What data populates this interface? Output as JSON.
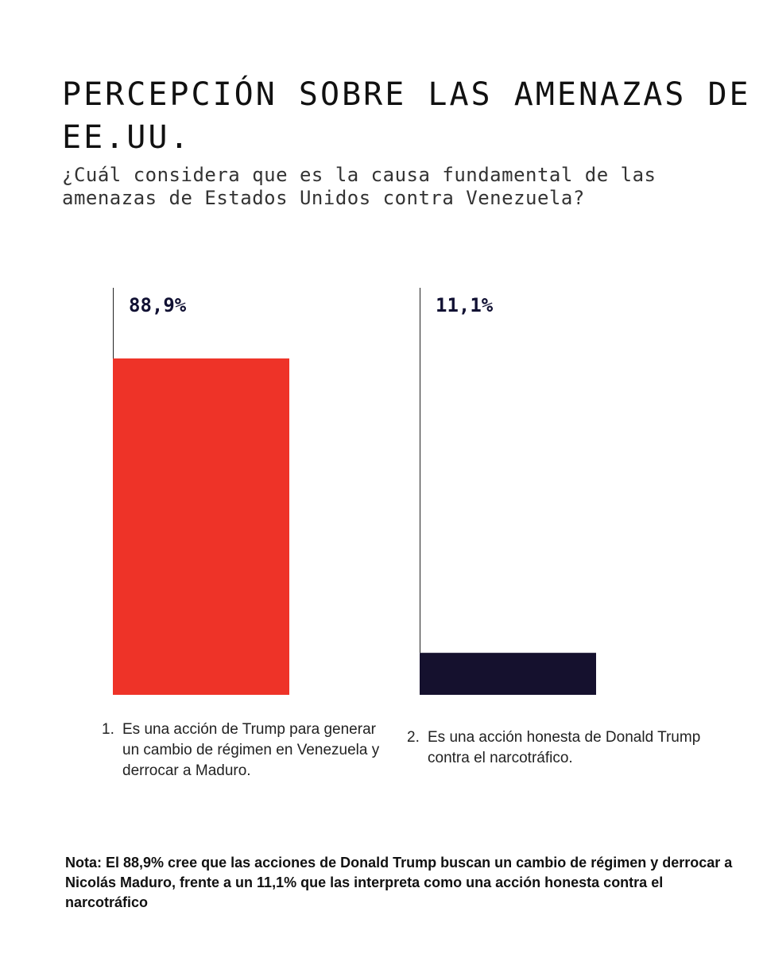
{
  "title": "PERCEPCIÓN SOBRE LAS AMENAZAS DE EE.UU.",
  "subtitle": "¿Cuál considera que es la causa fundamental de las amenazas de Estados Unidos contra Venezuela?",
  "chart_data": {
    "type": "bar",
    "categories": [
      "Es una acción de Trump para generar un cambio de régimen en Venezuela y derrocar a Maduro.",
      "Es una acción honesta de Donald Trump contra el narcotráfico."
    ],
    "category_numbers": [
      "1.",
      "2."
    ],
    "values": [
      88.9,
      11.1
    ],
    "value_labels": [
      "88,9%",
      "11,1%"
    ],
    "colors": [
      "#ee3328",
      "#15112e"
    ],
    "ylim": [
      0,
      100
    ],
    "grid": false
  },
  "note": "Nota: El 88,9% cree que las acciones de Donald Trump buscan un cambio de régimen y derrocar a Nicolás Maduro, frente a un 11,1% que las interpreta como una acción honesta contra el narcotráfico"
}
